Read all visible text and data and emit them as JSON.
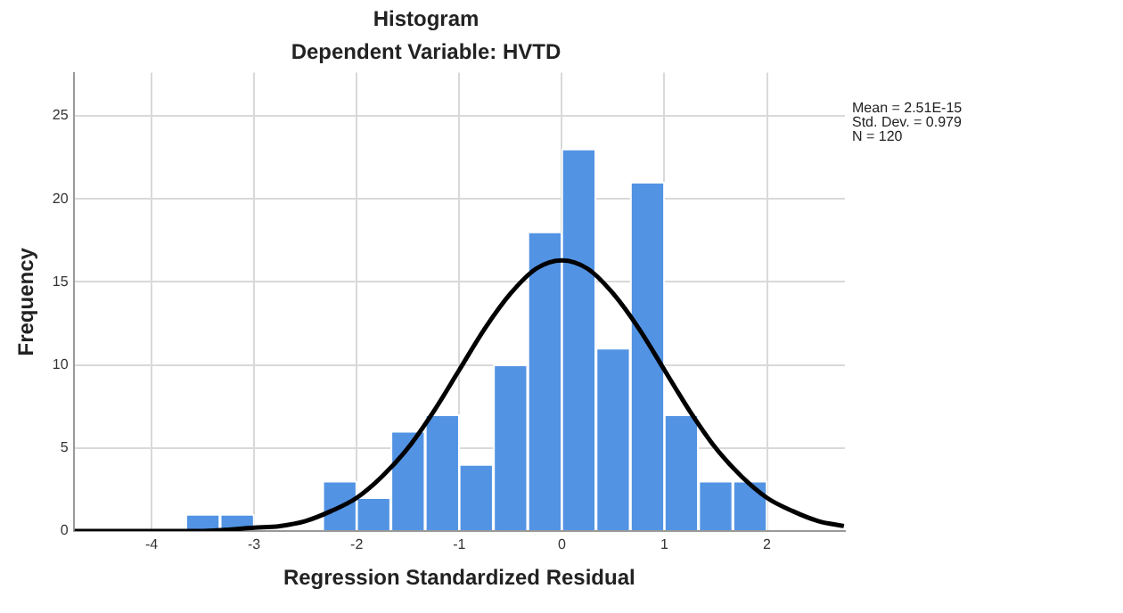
{
  "chart_data": {
    "type": "histogram",
    "title": "Histogram",
    "subtitle": "Dependent Variable: HVTD",
    "xlabel": "Regression Standardized Residual",
    "ylabel": "Frequency",
    "bins": [
      -3.67,
      -3.33,
      -3,
      -2.67,
      -2.33,
      -2,
      -1.67,
      -1.33,
      -1,
      -0.67,
      -0.33,
      0,
      0.33,
      0.67,
      1,
      1.33,
      1.67,
      2
    ],
    "values": [
      1,
      1,
      0,
      0,
      3,
      2,
      6,
      7,
      4,
      10,
      18,
      23,
      11,
      21,
      7,
      3,
      3
    ],
    "color": "#5293e3",
    "series": [
      {
        "type": "line",
        "color": "#000000",
        "x": [
          -4.75,
          -4.5,
          -4,
          -3.5,
          -3,
          -2.75,
          -2.5,
          -2.25,
          -2,
          -1.75,
          -1.5,
          -1.25,
          -1,
          -0.75,
          -0.5,
          -0.25,
          0,
          0.25,
          0.5,
          0.75,
          1,
          1.25,
          1.5,
          1.75,
          2,
          2.25,
          2.5,
          2.75
        ],
        "values": [
          0,
          0,
          0,
          0,
          0.2,
          0.3,
          0.6,
          1.2,
          2,
          3.3,
          5,
          7.2,
          9.7,
          12.2,
          14.3,
          15.8,
          16.3,
          15.8,
          14.3,
          12.2,
          9.7,
          7.2,
          5,
          3.3,
          2,
          1.2,
          0.6,
          0.3
        ]
      }
    ],
    "xlim": [
      -4.76,
      2.76
    ],
    "xticks": [
      -4,
      -3,
      -2,
      -1,
      0,
      1,
      2
    ],
    "ylim": [
      0,
      27.6
    ],
    "yticks": [
      0,
      5,
      10,
      15,
      20,
      25
    ],
    "grid": true,
    "marker": "none",
    "annotations": [
      "Mean = 2.51E-15\nStd. Dev. = 0.979\nN = 120"
    ]
  }
}
